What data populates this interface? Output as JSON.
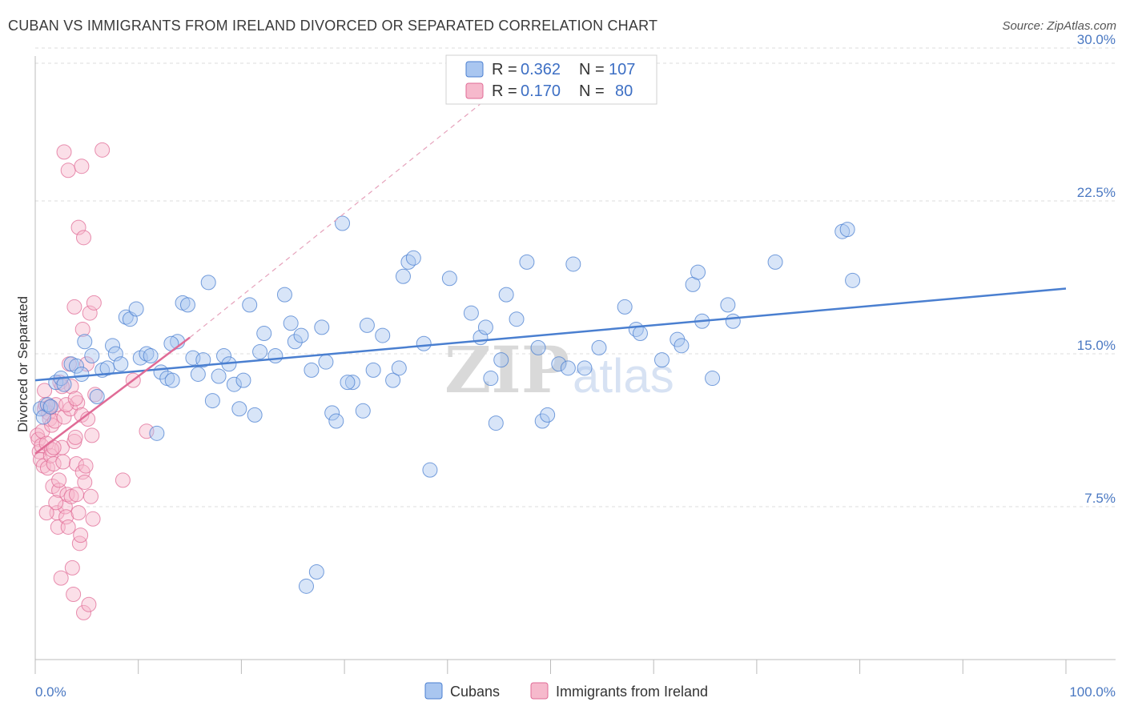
{
  "header": {
    "title": "CUBAN VS IMMIGRANTS FROM IRELAND DIVORCED OR SEPARATED CORRELATION CHART",
    "source": "Source: ZipAtlas.com"
  },
  "watermark": {
    "part1": "ZIP",
    "part2": "atlas"
  },
  "chart_data": {
    "type": "scatter",
    "ylabel": "Divorced or Separated",
    "xlim": [
      0,
      100
    ],
    "ylim": [
      0,
      32
    ],
    "x_tick_labels": {
      "min": "0.0%",
      "max": "100.0%"
    },
    "y_ticks": [
      {
        "value": 7.5,
        "label": "7.5%"
      },
      {
        "value": 15.0,
        "label": "15.0%"
      },
      {
        "value": 22.5,
        "label": "22.5%"
      },
      {
        "value": 30.0,
        "label": "30.0%"
      }
    ],
    "grid": true,
    "legend_placement": "top-center",
    "legend": [
      {
        "r_label": "R =",
        "r_value": "0.362",
        "n_label": "N =",
        "n_value": "107",
        "color": "#4a7fd0",
        "fill": "#a9c6f0"
      },
      {
        "r_label": "R =",
        "r_value": "0.170",
        "n_label": "N =",
        "n_value": "80",
        "color": "#e06b96",
        "fill": "#f6b9cc"
      }
    ],
    "series": [
      {
        "name": "Cubans",
        "color": "#4a7fd0",
        "trend": {
          "x0": 0,
          "y0": 13.7,
          "x1": 100,
          "y1": 18.2
        },
        "points": [
          [
            0.5,
            12.3
          ],
          [
            0.8,
            11.9
          ],
          [
            1.2,
            12.5
          ],
          [
            1.5,
            12.4
          ],
          [
            2.0,
            13.6
          ],
          [
            2.5,
            13.8
          ],
          [
            2.8,
            13.5
          ],
          [
            3.5,
            14.5
          ],
          [
            4.0,
            14.4
          ],
          [
            4.5,
            14.0
          ],
          [
            4.8,
            15.6
          ],
          [
            5.5,
            14.9
          ],
          [
            6.0,
            12.9
          ],
          [
            6.5,
            14.2
          ],
          [
            7.0,
            14.3
          ],
          [
            7.5,
            15.4
          ],
          [
            7.8,
            15.0
          ],
          [
            8.3,
            14.5
          ],
          [
            8.8,
            16.8
          ],
          [
            9.2,
            16.7
          ],
          [
            9.8,
            17.2
          ],
          [
            10.2,
            14.8
          ],
          [
            10.8,
            15.0
          ],
          [
            11.2,
            14.9
          ],
          [
            11.8,
            11.1
          ],
          [
            12.2,
            14.1
          ],
          [
            12.8,
            13.8
          ],
          [
            13.3,
            13.7
          ],
          [
            13.8,
            15.6
          ],
          [
            14.3,
            17.5
          ],
          [
            14.8,
            17.4
          ],
          [
            15.3,
            14.8
          ],
          [
            15.8,
            14.0
          ],
          [
            16.3,
            14.7
          ],
          [
            16.8,
            18.5
          ],
          [
            17.2,
            12.7
          ],
          [
            17.8,
            13.9
          ],
          [
            18.3,
            14.9
          ],
          [
            18.8,
            14.5
          ],
          [
            19.3,
            13.5
          ],
          [
            19.8,
            12.3
          ],
          [
            20.2,
            13.7
          ],
          [
            20.8,
            17.4
          ],
          [
            21.3,
            12.0
          ],
          [
            21.8,
            15.1
          ],
          [
            22.2,
            16.0
          ],
          [
            23.3,
            14.9
          ],
          [
            24.2,
            17.9
          ],
          [
            24.8,
            16.5
          ],
          [
            25.2,
            15.6
          ],
          [
            25.8,
            15.9
          ],
          [
            26.3,
            3.6
          ],
          [
            26.8,
            14.2
          ],
          [
            27.3,
            4.3
          ],
          [
            27.8,
            16.3
          ],
          [
            28.2,
            14.6
          ],
          [
            28.8,
            12.1
          ],
          [
            29.2,
            11.7
          ],
          [
            29.8,
            21.4
          ],
          [
            30.8,
            13.6
          ],
          [
            31.8,
            12.2
          ],
          [
            32.2,
            16.4
          ],
          [
            32.8,
            14.2
          ],
          [
            33.7,
            15.9
          ],
          [
            34.7,
            13.7
          ],
          [
            35.3,
            14.3
          ],
          [
            35.7,
            18.8
          ],
          [
            36.2,
            19.5
          ],
          [
            36.7,
            19.7
          ],
          [
            37.7,
            15.5
          ],
          [
            38.3,
            9.3
          ],
          [
            40.2,
            18.7
          ],
          [
            42.3,
            17.0
          ],
          [
            43.2,
            15.8
          ],
          [
            43.7,
            16.3
          ],
          [
            44.2,
            13.8
          ],
          [
            44.7,
            11.6
          ],
          [
            45.2,
            14.7
          ],
          [
            45.7,
            17.9
          ],
          [
            46.7,
            16.7
          ],
          [
            47.7,
            19.5
          ],
          [
            48.8,
            15.3
          ],
          [
            49.2,
            11.7
          ],
          [
            49.7,
            12.0
          ],
          [
            50.8,
            14.5
          ],
          [
            51.7,
            14.3
          ],
          [
            52.2,
            19.4
          ],
          [
            53.3,
            14.3
          ],
          [
            54.7,
            15.3
          ],
          [
            57.2,
            17.3
          ],
          [
            58.3,
            16.2
          ],
          [
            58.7,
            16.0
          ],
          [
            60.8,
            14.7
          ],
          [
            62.3,
            15.7
          ],
          [
            62.7,
            15.4
          ],
          [
            63.8,
            18.4
          ],
          [
            64.3,
            19.0
          ],
          [
            64.7,
            16.6
          ],
          [
            65.7,
            13.8
          ],
          [
            67.7,
            16.6
          ],
          [
            67.2,
            17.4
          ],
          [
            71.8,
            19.5
          ],
          [
            78.3,
            21.0
          ],
          [
            78.8,
            21.1
          ],
          [
            79.3,
            18.6
          ],
          [
            13.2,
            15.5
          ],
          [
            30.3,
            13.6
          ]
        ]
      },
      {
        "name": "Immigrants from Ireland",
        "color": "#e06b96",
        "trend": {
          "x0": 0,
          "y0": 10.1,
          "x1": 15,
          "y1": 15.8,
          "dash_x1": 46,
          "dash_y1": 28.4
        },
        "points": [
          [
            0.2,
            11.0
          ],
          [
            0.3,
            10.8
          ],
          [
            0.4,
            10.2
          ],
          [
            0.5,
            9.8
          ],
          [
            0.6,
            10.5
          ],
          [
            0.7,
            11.2
          ],
          [
            0.8,
            9.5
          ],
          [
            0.9,
            12.3
          ],
          [
            1.0,
            12.5
          ],
          [
            1.1,
            10.6
          ],
          [
            1.2,
            9.4
          ],
          [
            1.3,
            12.1
          ],
          [
            1.4,
            11.8
          ],
          [
            1.5,
            10.0
          ],
          [
            1.6,
            11.5
          ],
          [
            1.7,
            8.5
          ],
          [
            1.8,
            9.6
          ],
          [
            1.9,
            11.7
          ],
          [
            2.0,
            12.5
          ],
          [
            2.1,
            7.2
          ],
          [
            2.2,
            6.5
          ],
          [
            2.3,
            8.3
          ],
          [
            2.4,
            13.6
          ],
          [
            2.5,
            4.0
          ],
          [
            2.6,
            10.4
          ],
          [
            2.7,
            9.7
          ],
          [
            2.8,
            11.9
          ],
          [
            2.9,
            7.5
          ],
          [
            3.0,
            7.0
          ],
          [
            3.1,
            8.1
          ],
          [
            3.2,
            6.5
          ],
          [
            3.3,
            14.5
          ],
          [
            3.4,
            12.3
          ],
          [
            3.5,
            8.0
          ],
          [
            3.6,
            4.5
          ],
          [
            3.7,
            3.2
          ],
          [
            3.8,
            10.7
          ],
          [
            3.9,
            10.9
          ],
          [
            4.0,
            9.6
          ],
          [
            4.1,
            12.6
          ],
          [
            4.2,
            7.2
          ],
          [
            4.3,
            5.7
          ],
          [
            4.4,
            6.1
          ],
          [
            4.5,
            12.0
          ],
          [
            4.6,
            9.2
          ],
          [
            4.7,
            2.3
          ],
          [
            4.8,
            8.7
          ],
          [
            4.9,
            9.5
          ],
          [
            5.0,
            14.5
          ],
          [
            5.1,
            11.8
          ],
          [
            5.2,
            2.7
          ],
          [
            5.3,
            17.0
          ],
          [
            5.4,
            8.0
          ],
          [
            5.5,
            11.0
          ],
          [
            5.6,
            6.9
          ],
          [
            5.7,
            17.5
          ],
          [
            2.8,
            24.9
          ],
          [
            3.2,
            24.0
          ],
          [
            4.2,
            21.2
          ],
          [
            4.5,
            24.2
          ],
          [
            4.7,
            20.7
          ],
          [
            6.5,
            25.0
          ],
          [
            3.8,
            17.3
          ],
          [
            4.6,
            16.2
          ],
          [
            3.0,
            12.5
          ],
          [
            3.5,
            13.4
          ],
          [
            5.8,
            13.0
          ],
          [
            8.5,
            8.8
          ],
          [
            9.5,
            13.7
          ],
          [
            10.8,
            11.2
          ],
          [
            2.0,
            7.7
          ],
          [
            2.3,
            8.8
          ],
          [
            1.6,
            10.3
          ],
          [
            0.9,
            13.2
          ],
          [
            1.1,
            7.2
          ],
          [
            4.0,
            8.1
          ],
          [
            2.6,
            13.4
          ],
          [
            3.9,
            12.8
          ],
          [
            1.4,
            12.4
          ],
          [
            1.8,
            10.4
          ]
        ]
      }
    ]
  }
}
